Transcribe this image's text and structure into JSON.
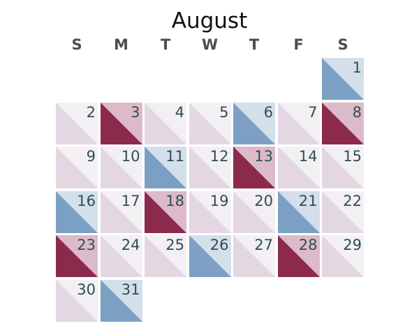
{
  "chart_data": {
    "type": "heatmap",
    "subtype": "calendar",
    "title": "August",
    "weekday_labels": [
      "S",
      "M",
      "T",
      "W",
      "T",
      "F",
      "S"
    ],
    "start_weekday_index": 6,
    "days": [
      {
        "day": 1,
        "label": "1",
        "category": "blue"
      },
      {
        "day": 2,
        "label": "2",
        "category": "neutral"
      },
      {
        "day": 3,
        "label": "3",
        "category": "red"
      },
      {
        "day": 4,
        "label": "4",
        "category": "neutral"
      },
      {
        "day": 5,
        "label": "5",
        "category": "neutral"
      },
      {
        "day": 6,
        "label": "6",
        "category": "blue"
      },
      {
        "day": 7,
        "label": "7",
        "category": "neutral"
      },
      {
        "day": 8,
        "label": "8",
        "category": "red"
      },
      {
        "day": 9,
        "label": "9",
        "category": "neutral"
      },
      {
        "day": 10,
        "label": "10",
        "category": "neutral"
      },
      {
        "day": 11,
        "label": "11",
        "category": "blue"
      },
      {
        "day": 12,
        "label": "12",
        "category": "neutral"
      },
      {
        "day": 13,
        "label": "13",
        "category": "red"
      },
      {
        "day": 14,
        "label": "14",
        "category": "neutral"
      },
      {
        "day": 15,
        "label": "15",
        "category": "neutral"
      },
      {
        "day": 16,
        "label": "16",
        "category": "blue"
      },
      {
        "day": 17,
        "label": "17",
        "category": "neutral"
      },
      {
        "day": 18,
        "label": "18",
        "category": "red"
      },
      {
        "day": 19,
        "label": "19",
        "category": "neutral"
      },
      {
        "day": 20,
        "label": "20",
        "category": "neutral"
      },
      {
        "day": 21,
        "label": "21",
        "category": "blue"
      },
      {
        "day": 22,
        "label": "22",
        "category": "neutral"
      },
      {
        "day": 23,
        "label": "23",
        "category": "red"
      },
      {
        "day": 24,
        "label": "24",
        "category": "neutral"
      },
      {
        "day": 25,
        "label": "25",
        "category": "neutral"
      },
      {
        "day": 26,
        "label": "26",
        "category": "blue"
      },
      {
        "day": 27,
        "label": "27",
        "category": "neutral"
      },
      {
        "day": 28,
        "label": "28",
        "category": "red"
      },
      {
        "day": 29,
        "label": "29",
        "category": "neutral"
      },
      {
        "day": 30,
        "label": "30",
        "category": "neutral"
      },
      {
        "day": 31,
        "label": "31",
        "category": "blue"
      }
    ],
    "colors": {
      "blue": {
        "lower": "#7ba0c4",
        "upper": "#d3dfea"
      },
      "red": {
        "lower": "#8c2a4e",
        "upper": "#ddbac9"
      },
      "neutral": {
        "lower": "#e3d7e1",
        "upper": "#f3f0f4"
      }
    }
  }
}
